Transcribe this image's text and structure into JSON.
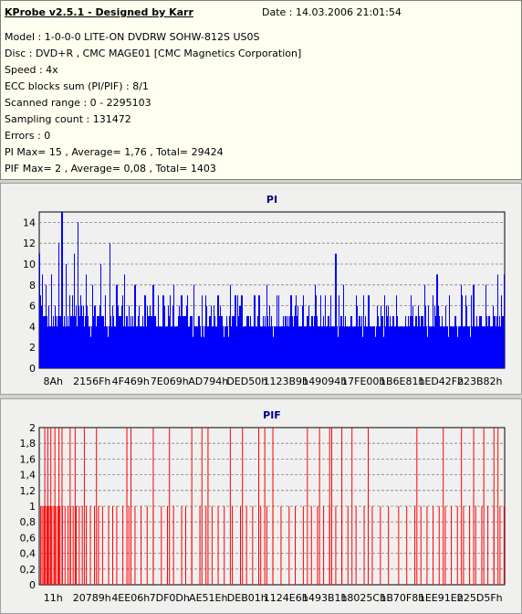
{
  "info": {
    "title": "KProbe v2.5.1 - Designed by Karr",
    "date": "Date : 14.03.2006 21:01:54",
    "lines": [
      "Model : 1-0-0-0 LITE-ON DVDRW SOHW-812S  US0S",
      "Disc : DVD+R , CMC MAGE01 [CMC Magnetics Corporation]",
      "Speed : 4x",
      "ECC blocks sum (PI/PIF) : 8/1",
      "Scanned range : 0 - 2295103",
      "Sampling count : 131472",
      "Errors : 0",
      "PI Max= 15 , Average= 1,76 , Total= 29424",
      "PIF Max= 2 , Average= 0,08 , Total= 1403"
    ]
  },
  "colors": {
    "pi": "#0000ff",
    "pif": "#ff0000",
    "plot_bg": "#f0f0f0",
    "title": "#000080"
  },
  "chart_data": [
    {
      "type": "bar",
      "title": "PI",
      "ylim": [
        0,
        15
      ],
      "yticks": [
        "0",
        "2",
        "4",
        "6",
        "8",
        "10",
        "12",
        "14"
      ],
      "ytick_values": [
        0,
        2,
        4,
        6,
        8,
        10,
        12,
        14
      ],
      "xticks": [
        "8Ah",
        "2156Fh",
        "4F469h",
        "7E069h",
        "AD794h",
        "DED50h",
        "1123B9h",
        "149094h",
        "17FE00h",
        "1B6E81h",
        "1ED42Fh",
        "223B82h"
      ],
      "x_range": [
        0,
        2295103
      ],
      "grid": true,
      "series": [
        {
          "baseline": [
            5,
            4,
            5,
            4,
            5,
            5,
            4,
            5,
            4,
            4,
            5,
            4,
            4,
            4,
            5,
            4,
            4,
            4,
            5,
            4,
            4,
            4,
            4,
            4,
            4,
            4,
            4,
            4,
            4,
            4,
            4,
            4,
            4,
            4,
            4,
            4,
            4,
            4,
            4,
            4,
            4,
            4,
            4,
            4,
            4,
            4,
            4,
            4,
            4,
            4,
            4,
            4,
            4,
            4,
            4,
            4,
            4,
            4,
            4,
            4
          ],
          "peaks": [
            {
              "x": 0,
              "y": 11
            },
            {
              "x": 12000,
              "y": 9
            },
            {
              "x": 30000,
              "y": 8
            },
            {
              "x": 60000,
              "y": 9
            },
            {
              "x": 95000,
              "y": 12
            },
            {
              "x": 110000,
              "y": 15
            },
            {
              "x": 130000,
              "y": 10
            },
            {
              "x": 170000,
              "y": 11
            },
            {
              "x": 190000,
              "y": 14
            },
            {
              "x": 230000,
              "y": 9
            },
            {
              "x": 260000,
              "y": 8
            },
            {
              "x": 300000,
              "y": 10
            },
            {
              "x": 345000,
              "y": 12
            },
            {
              "x": 380000,
              "y": 8
            },
            {
              "x": 420000,
              "y": 9
            },
            {
              "x": 470000,
              "y": 8
            },
            {
              "x": 520000,
              "y": 7
            },
            {
              "x": 560000,
              "y": 8
            },
            {
              "x": 610000,
              "y": 7
            },
            {
              "x": 660000,
              "y": 8
            },
            {
              "x": 700000,
              "y": 7
            },
            {
              "x": 760000,
              "y": 8
            },
            {
              "x": 820000,
              "y": 7
            },
            {
              "x": 880000,
              "y": 7
            },
            {
              "x": 940000,
              "y": 8
            },
            {
              "x": 1000000,
              "y": 7
            },
            {
              "x": 1060000,
              "y": 7
            },
            {
              "x": 1120000,
              "y": 8
            },
            {
              "x": 1180000,
              "y": 7
            },
            {
              "x": 1240000,
              "y": 7
            },
            {
              "x": 1300000,
              "y": 7
            },
            {
              "x": 1360000,
              "y": 8
            },
            {
              "x": 1410000,
              "y": 7
            },
            {
              "x": 1460000,
              "y": 11
            },
            {
              "x": 1500000,
              "y": 8
            },
            {
              "x": 1560000,
              "y": 7
            },
            {
              "x": 1620000,
              "y": 7
            },
            {
              "x": 1700000,
              "y": 7
            },
            {
              "x": 1760000,
              "y": 7
            },
            {
              "x": 1830000,
              "y": 7
            },
            {
              "x": 1900000,
              "y": 8
            },
            {
              "x": 1960000,
              "y": 9
            },
            {
              "x": 2020000,
              "y": 7
            },
            {
              "x": 2080000,
              "y": 8
            },
            {
              "x": 2140000,
              "y": 8
            },
            {
              "x": 2200000,
              "y": 8
            },
            {
              "x": 2260000,
              "y": 9
            },
            {
              "x": 2290000,
              "y": 9
            }
          ]
        }
      ]
    },
    {
      "type": "bar",
      "title": "PIF",
      "ylim": [
        0,
        2
      ],
      "yticks": [
        "0",
        "0,2",
        "0,4",
        "0,6",
        "0,8",
        "1",
        "1,2",
        "1,4",
        "1,6",
        "1,8",
        "2"
      ],
      "ytick_values": [
        0,
        0.2,
        0.4,
        0.6,
        0.8,
        1,
        1.2,
        1.4,
        1.6,
        1.8,
        2
      ],
      "xticks": [
        "11h",
        "20789h",
        "4EE06h",
        "7DF0Dh",
        "AE51Eh",
        "DEB01h",
        "1124E6h",
        "1493B1h",
        "18025Ch",
        "1B70F8h",
        "1EE91Eh",
        "225D5Fh"
      ],
      "x_range": [
        0,
        2295103
      ],
      "grid": true,
      "series": [
        {
          "ones": [
            5000,
            12000,
            20000,
            28000,
            36000,
            44000,
            52000,
            60000,
            70000,
            80000,
            90000,
            100000,
            112000,
            125000,
            140000,
            152000,
            165000,
            180000,
            195000,
            210000,
            230000,
            250000,
            270000,
            290000,
            310000,
            340000,
            360000,
            380000,
            410000,
            440000,
            470000,
            500000,
            530000,
            560000,
            600000,
            630000,
            660000,
            700000,
            720000,
            750000,
            790000,
            820000,
            850000,
            880000,
            910000,
            950000,
            990000,
            1020000,
            1050000,
            1090000,
            1120000,
            1150000,
            1190000,
            1230000,
            1260000,
            1300000,
            1340000,
            1370000,
            1400000,
            1430000,
            1460000,
            1490000,
            1520000,
            1560000,
            1600000,
            1640000,
            1680000,
            1720000,
            1770000,
            1810000,
            1850000,
            1880000,
            1910000,
            1940000,
            1970000,
            2000000,
            2030000,
            2060000,
            2090000,
            2120000,
            2150000,
            2180000,
            2210000,
            2240000,
            2270000,
            2290000
          ],
          "twos": [
            25000,
            40000,
            55000,
            75000,
            95000,
            110000,
            150000,
            175000,
            220000,
            280000,
            430000,
            450000,
            560000,
            640000,
            750000,
            800000,
            830000,
            940000,
            1000000,
            1080000,
            1110000,
            1150000,
            1320000,
            1380000,
            1430000,
            1440000,
            1490000,
            1540000,
            1620000,
            1860000,
            1990000,
            2080000,
            2140000,
            2190000,
            2240000,
            2260000
          ]
        }
      ]
    }
  ]
}
